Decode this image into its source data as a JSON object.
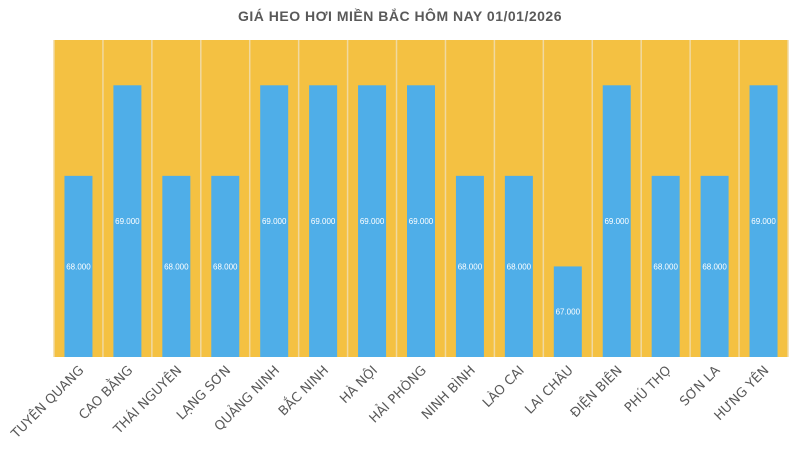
{
  "chart_data": {
    "type": "bar",
    "title": "GIÁ HEO HƠI MIỀN BẮC HÔM NAY 01/01/2026",
    "categories": [
      "TUYÊN QUANG",
      "CAO BẰNG",
      "THÁI NGUYÊN",
      "LẠNG SƠN",
      "QUẢNG NINH",
      "BẮC NINH",
      "HÀ NỘI",
      "HẢI PHÒNG",
      "NINH BÌNH",
      "LÀO CAI",
      "LAI CHÂU",
      "ĐIỆN BIÊN",
      "PHÚ THỌ",
      "SƠN LA",
      "HƯNG YÊN"
    ],
    "values": [
      68000,
      69000,
      68000,
      68000,
      69000,
      69000,
      69000,
      69000,
      68000,
      68000,
      67000,
      69000,
      68000,
      68000,
      69000
    ],
    "data_labels": [
      "68.000",
      "69.000",
      "68.000",
      "68.000",
      "69.000",
      "69.000",
      "69.000",
      "69.000",
      "68.000",
      "68.000",
      "67.000",
      "69.000",
      "68.000",
      "68.000",
      "69.000"
    ],
    "xlabel": "",
    "ylabel": "",
    "ylim": [
      66000,
      69500
    ],
    "grid": false,
    "colors": {
      "bar": "#4faee8",
      "plot_background": "#f4c142",
      "separator": "#f0d9a0",
      "label": "#595959"
    }
  }
}
